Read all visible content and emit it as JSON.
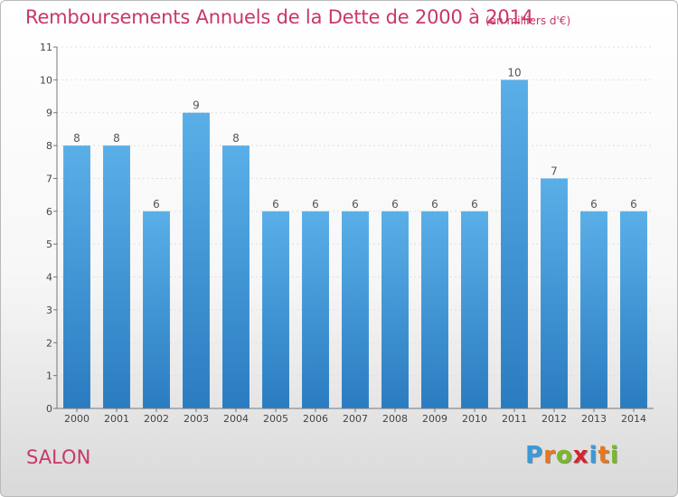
{
  "header": {
    "title": "Remboursements Annuels de la Dette de 2000 à 2014",
    "subtitle": "(en milliers d'€)"
  },
  "footer": {
    "city": "SALON",
    "logo_letters": [
      "P",
      "r",
      "o",
      "x",
      "i",
      "t",
      "i"
    ],
    "logo_colors": [
      "#3a9ad9",
      "#e87722",
      "#7ab827",
      "#d6232c",
      "#3a9ad9",
      "#e87722",
      "#7ab827"
    ]
  },
  "colors": {
    "bar_top": "#5aafe8",
    "bar_bottom": "#2a7cc0",
    "title": "#c8376a",
    "axis": "#555555"
  },
  "chart_data": {
    "type": "bar",
    "categories": [
      "2000",
      "2001",
      "2002",
      "2003",
      "2004",
      "2005",
      "2006",
      "2007",
      "2008",
      "2009",
      "2010",
      "2011",
      "2012",
      "2013",
      "2014"
    ],
    "values": [
      8,
      8,
      6,
      9,
      8,
      6,
      6,
      6,
      6,
      6,
      6,
      10,
      7,
      6,
      6
    ],
    "ylim": [
      0,
      11
    ],
    "yticks": [
      0,
      1,
      2,
      3,
      4,
      5,
      6,
      7,
      8,
      9,
      10,
      11
    ],
    "grid": true,
    "legend": "none"
  }
}
